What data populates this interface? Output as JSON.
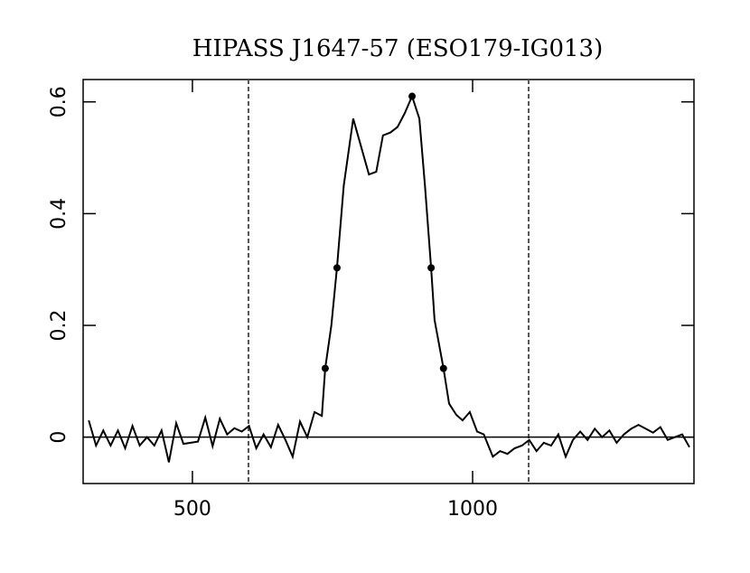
{
  "chart_data": {
    "type": "line",
    "title": "HIPASS J1647-57 (ESO179-IG013)",
    "x": [
      315,
      328,
      341,
      354,
      367,
      380,
      393,
      406,
      419,
      432,
      445,
      458,
      471,
      484,
      497,
      510,
      523,
      536,
      549,
      562,
      575,
      588,
      601,
      614,
      627,
      640,
      653,
      666,
      679,
      692,
      705,
      718,
      731,
      737,
      748,
      758,
      770,
      787,
      801,
      815,
      828,
      840,
      853,
      866,
      879,
      892,
      905,
      915,
      926,
      932,
      948,
      958,
      971,
      982,
      995,
      1008,
      1020,
      1036,
      1049,
      1062,
      1075,
      1088,
      1101,
      1114,
      1127,
      1140,
      1153,
      1166,
      1179,
      1192,
      1205,
      1218,
      1231,
      1244,
      1257,
      1270,
      1283,
      1296,
      1309,
      1322,
      1335,
      1348,
      1361,
      1374,
      1387
    ],
    "values": [
      0.03,
      -0.015,
      0.012,
      -0.015,
      0.012,
      -0.02,
      0.02,
      -0.015,
      0.0,
      -0.015,
      0.012,
      -0.045,
      0.025,
      -0.012,
      -0.01,
      -0.008,
      0.035,
      -0.016,
      0.033,
      0.005,
      0.016,
      0.01,
      0.02,
      -0.02,
      0.005,
      -0.018,
      0.022,
      -0.005,
      -0.035,
      0.028,
      0.0,
      0.045,
      0.038,
      0.123,
      0.2,
      0.303,
      0.45,
      0.57,
      0.52,
      0.47,
      0.475,
      0.54,
      0.545,
      0.555,
      0.58,
      0.61,
      0.57,
      0.45,
      0.303,
      0.21,
      0.123,
      0.06,
      0.04,
      0.03,
      0.045,
      0.01,
      0.005,
      -0.035,
      -0.025,
      -0.03,
      -0.02,
      -0.015,
      -0.005,
      -0.025,
      -0.01,
      -0.015,
      0.005,
      -0.035,
      -0.005,
      0.01,
      -0.005,
      0.015,
      0.0,
      0.012,
      -0.01,
      0.005,
      0.015,
      0.022,
      0.015,
      0.008,
      0.018,
      -0.005,
      0.0,
      0.005,
      -0.018
    ],
    "color": "#000000",
    "points": {
      "x": [
        737,
        758,
        892,
        926,
        948
      ],
      "y": [
        0.123,
        0.303,
        0.61,
        0.303,
        0.123
      ]
    },
    "vlines": [
      600,
      1100
    ],
    "hline": 0,
    "xlim": [
      305,
      1395
    ],
    "ylim": [
      -0.083,
      0.64
    ],
    "xticks": [
      500,
      1000
    ],
    "yticks": [
      0,
      0.2,
      0.4,
      0.6
    ]
  }
}
